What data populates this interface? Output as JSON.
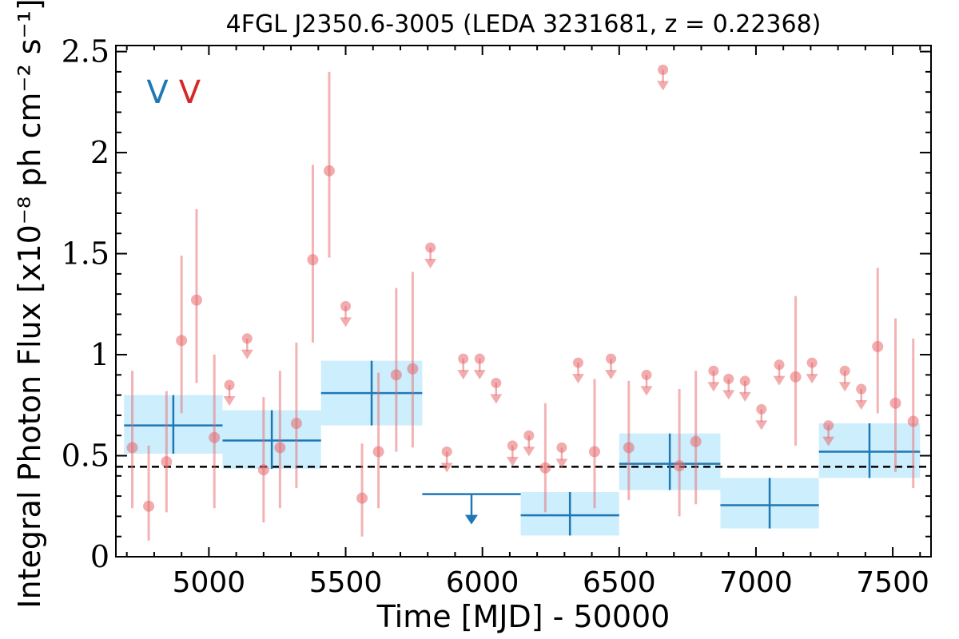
{
  "chart_data": {
    "type": "scatter",
    "title": "4FGL J2350.6-3005 (LEDA 3231681, z = 0.22368)",
    "xlabel": "Time [MJD] - 50000",
    "ylabel": "Integral Photon Flux [x10⁻⁸ ph cm⁻² s⁻¹]",
    "xlim": [
      4660,
      7640
    ],
    "ylim": [
      0,
      2.53
    ],
    "xticks": [
      5000,
      5500,
      6000,
      6500,
      7000,
      7500
    ],
    "yticks": [
      0,
      0.5,
      1,
      1.5,
      2,
      2.5
    ],
    "ytick_labels": [
      "0",
      "0.5",
      "1",
      "1.5",
      "2",
      "2.5"
    ],
    "markers": [
      {
        "text": "V",
        "x": 4812,
        "y": 2.3,
        "color": "#1f77b4"
      },
      {
        "text": "V",
        "x": 4930,
        "y": 2.3,
        "color": "#d62728"
      }
    ],
    "reference_line": {
      "y": 0.445,
      "style": "dashed",
      "color": "#000000"
    },
    "colors": {
      "coarse": "#1f77b4",
      "coarse_band": "#cdeefc",
      "fine": "#e8676b"
    },
    "series": [
      {
        "type": "binned_flux",
        "bins": [
          {
            "x0": 4690,
            "x1": 5050,
            "y": 0.65,
            "ylo": 0.51,
            "yhi": 0.8
          },
          {
            "x0": 5050,
            "x1": 5410,
            "y": 0.575,
            "ylo": 0.435,
            "yhi": 0.725
          },
          {
            "x0": 5410,
            "x1": 5780,
            "y": 0.81,
            "ylo": 0.65,
            "yhi": 0.97
          },
          {
            "x0": 5780,
            "x1": 6140,
            "y": 0.31,
            "upper_limit": true
          },
          {
            "x0": 6140,
            "x1": 6500,
            "y": 0.205,
            "ylo": 0.105,
            "yhi": 0.32
          },
          {
            "x0": 6500,
            "x1": 6870,
            "y": 0.46,
            "ylo": 0.33,
            "yhi": 0.61
          },
          {
            "x0": 6870,
            "x1": 7230,
            "y": 0.255,
            "ylo": 0.14,
            "yhi": 0.39
          },
          {
            "x0": 7230,
            "x1": 7600,
            "y": 0.52,
            "ylo": 0.39,
            "yhi": 0.66
          }
        ]
      },
      {
        "type": "fine_flux",
        "points": [
          {
            "x": 4720,
            "y": 0.54,
            "ylo": 0.24,
            "yhi": 0.92
          },
          {
            "x": 4780,
            "y": 0.25,
            "ylo": 0.08,
            "yhi": 0.55
          },
          {
            "x": 4845,
            "y": 0.47,
            "ylo": 0.22,
            "yhi": 0.82
          },
          {
            "x": 4900,
            "y": 1.07,
            "ylo": 0.71,
            "yhi": 1.49
          },
          {
            "x": 4955,
            "y": 1.27,
            "ylo": 0.86,
            "yhi": 1.72
          },
          {
            "x": 5020,
            "y": 0.59,
            "ylo": 0.24,
            "yhi": 1.0
          },
          {
            "x": 5075,
            "y": 0.85,
            "ul": true
          },
          {
            "x": 5140,
            "y": 1.08,
            "ul": true
          },
          {
            "x": 5200,
            "y": 0.43,
            "ylo": 0.17,
            "yhi": 0.79
          },
          {
            "x": 5260,
            "y": 0.54,
            "ylo": 0.24,
            "yhi": 0.92
          },
          {
            "x": 5320,
            "y": 0.66,
            "ylo": 0.34,
            "yhi": 1.06
          },
          {
            "x": 5380,
            "y": 1.47,
            "ylo": 1.06,
            "yhi": 1.94
          },
          {
            "x": 5440,
            "y": 1.91,
            "ylo": 1.48,
            "yhi": 2.4
          },
          {
            "x": 5500,
            "y": 1.24,
            "ul": true
          },
          {
            "x": 5560,
            "y": 0.29,
            "ylo": 0.1,
            "yhi": 0.56
          },
          {
            "x": 5620,
            "y": 0.52,
            "ylo": 0.24,
            "yhi": 0.91
          },
          {
            "x": 5685,
            "y": 0.9,
            "ylo": 0.52,
            "yhi": 1.33
          },
          {
            "x": 5745,
            "y": 0.93,
            "ylo": 0.54,
            "yhi": 1.41
          },
          {
            "x": 5810,
            "y": 1.53,
            "ul": true
          },
          {
            "x": 5870,
            "y": 0.52,
            "ul": true
          },
          {
            "x": 5930,
            "y": 0.98,
            "ul": true
          },
          {
            "x": 5990,
            "y": 0.98,
            "ul": true
          },
          {
            "x": 6050,
            "y": 0.86,
            "ul": true
          },
          {
            "x": 6110,
            "y": 0.55,
            "ul": true
          },
          {
            "x": 6170,
            "y": 0.6,
            "ul": true
          },
          {
            "x": 6230,
            "y": 0.44,
            "ylo": 0.22,
            "yhi": 0.76
          },
          {
            "x": 6290,
            "y": 0.54,
            "ul": true
          },
          {
            "x": 6350,
            "y": 0.96,
            "ul": true
          },
          {
            "x": 6410,
            "y": 0.52,
            "ylo": 0.24,
            "yhi": 0.88
          },
          {
            "x": 6470,
            "y": 0.98,
            "ul": true
          },
          {
            "x": 6535,
            "y": 0.54,
            "ylo": 0.28,
            "yhi": 0.87
          },
          {
            "x": 6600,
            "y": 0.9,
            "ul": true
          },
          {
            "x": 6660,
            "y": 2.41,
            "ul": true
          },
          {
            "x": 6720,
            "y": 0.45,
            "ylo": 0.2,
            "yhi": 0.83
          },
          {
            "x": 6780,
            "y": 0.57,
            "ylo": 0.26,
            "yhi": 0.92
          },
          {
            "x": 6845,
            "y": 0.92,
            "ul": true
          },
          {
            "x": 6900,
            "y": 0.88,
            "ul": true
          },
          {
            "x": 6960,
            "y": 0.87,
            "ul": true
          },
          {
            "x": 7020,
            "y": 0.73,
            "ul": true
          },
          {
            "x": 7085,
            "y": 0.95,
            "ul": true
          },
          {
            "x": 7145,
            "y": 0.89,
            "ylo": 0.55,
            "yhi": 1.29
          },
          {
            "x": 7205,
            "y": 0.96,
            "ul": true
          },
          {
            "x": 7265,
            "y": 0.65,
            "ul": true
          },
          {
            "x": 7325,
            "y": 0.92,
            "ul": true
          },
          {
            "x": 7385,
            "y": 0.83,
            "ul": true
          },
          {
            "x": 7445,
            "y": 1.04,
            "ylo": 0.71,
            "yhi": 1.43
          },
          {
            "x": 7510,
            "y": 0.76,
            "ylo": 0.42,
            "yhi": 1.18
          },
          {
            "x": 7575,
            "y": 0.67,
            "ylo": 0.34,
            "yhi": 1.08
          }
        ]
      }
    ]
  }
}
